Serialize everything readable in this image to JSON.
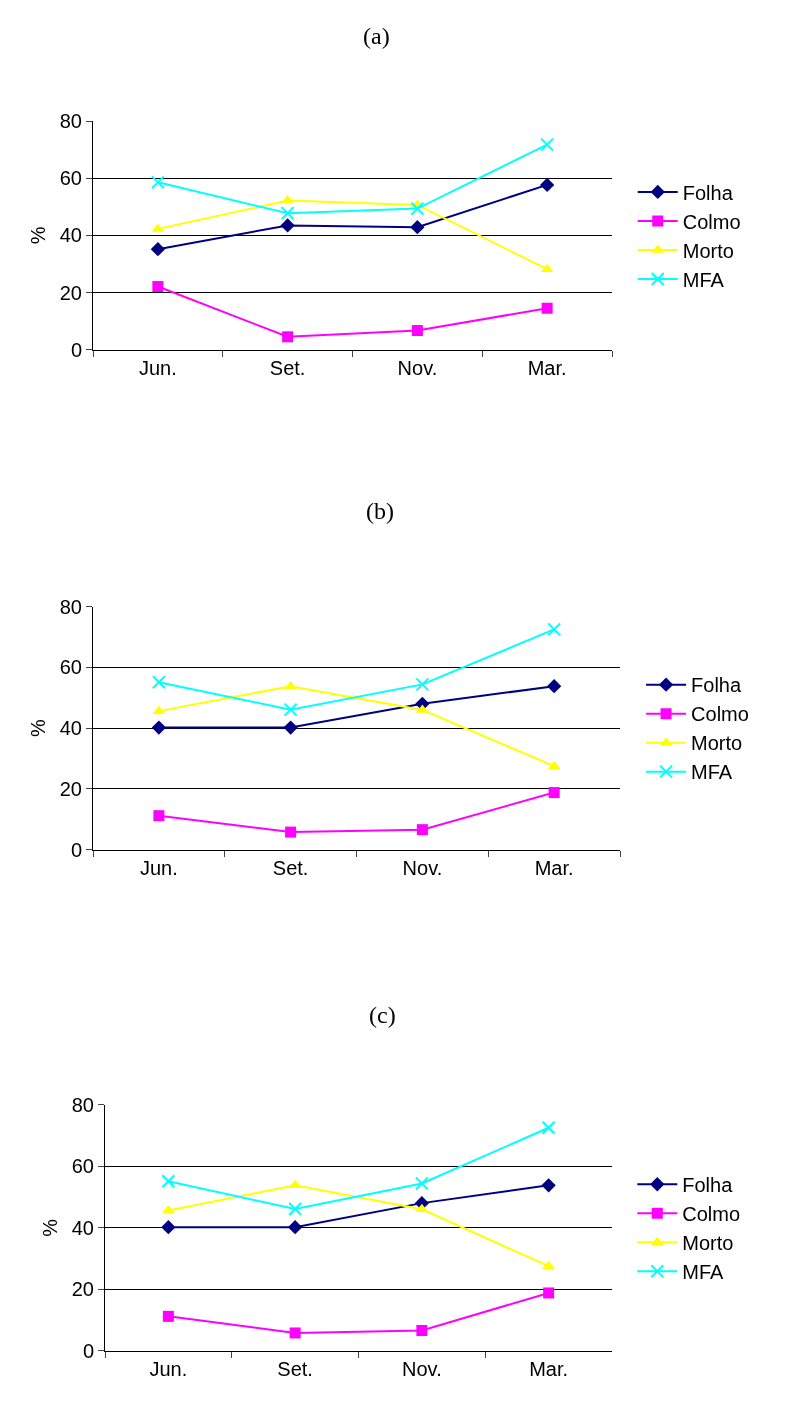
{
  "chart_data": [
    {
      "type": "line",
      "title": "(a)",
      "ylabel": "%",
      "categories": [
        "Jun.",
        "Set.",
        "Nov.",
        "Mar."
      ],
      "ylim": [
        0,
        80
      ],
      "yticks": [
        0,
        20,
        40,
        60,
        80
      ],
      "grid": "y",
      "legend": "right",
      "series": [
        {
          "name": "Folha",
          "color": "#000080",
          "marker": "diamond",
          "values": [
            35.2,
            43.5,
            42.9,
            57.7
          ]
        },
        {
          "name": "Colmo",
          "color": "#ff00ff",
          "marker": "square",
          "values": [
            22.1,
            4.5,
            6.7,
            14.5
          ]
        },
        {
          "name": "Morto",
          "color": "#ffff00",
          "marker": "triangle",
          "values": [
            42.3,
            52.2,
            50.7,
            28.2
          ]
        },
        {
          "name": "MFA",
          "color": "#00ffff",
          "marker": "cross",
          "values": [
            58.6,
            47.8,
            49.4,
            71.8
          ]
        }
      ]
    },
    {
      "type": "line",
      "title": "(b)",
      "ylabel": "%",
      "categories": [
        "Jun.",
        "Set.",
        "Nov.",
        "Mar."
      ],
      "ylim": [
        0,
        80
      ],
      "yticks": [
        0,
        20,
        40,
        60,
        80
      ],
      "grid": "y",
      "legend": "right",
      "series": [
        {
          "name": "Folha",
          "color": "#000080",
          "marker": "diamond",
          "values": [
            40.2,
            40.2,
            48.0,
            53.8
          ]
        },
        {
          "name": "Colmo",
          "color": "#ff00ff",
          "marker": "square",
          "values": [
            11.2,
            5.8,
            6.6,
            18.8
          ]
        },
        {
          "name": "Morto",
          "color": "#ffff00",
          "marker": "triangle",
          "values": [
            45.6,
            53.8,
            46.0,
            27.5
          ]
        },
        {
          "name": "MFA",
          "color": "#00ffff",
          "marker": "cross",
          "values": [
            55.1,
            46.1,
            54.4,
            72.5
          ]
        }
      ]
    },
    {
      "type": "line",
      "title": "(c)",
      "ylabel": "%",
      "categories": [
        "Jun.",
        "Set.",
        "Nov.",
        "Mar."
      ],
      "ylim": [
        0,
        80
      ],
      "yticks": [
        0,
        20,
        40,
        60,
        80
      ],
      "grid": "y",
      "legend": "right",
      "series": [
        {
          "name": "Folha",
          "color": "#000080",
          "marker": "diamond",
          "values": [
            40.2,
            40.2,
            48.0,
            53.8
          ]
        },
        {
          "name": "Colmo",
          "color": "#ff00ff",
          "marker": "square",
          "values": [
            11.2,
            5.8,
            6.6,
            18.8
          ]
        },
        {
          "name": "Morto",
          "color": "#ffff00",
          "marker": "triangle",
          "values": [
            45.6,
            53.8,
            46.0,
            27.5
          ]
        },
        {
          "name": "MFA",
          "color": "#00ffff",
          "marker": "cross",
          "values": [
            55.1,
            46.1,
            54.4,
            72.5
          ]
        }
      ]
    }
  ]
}
